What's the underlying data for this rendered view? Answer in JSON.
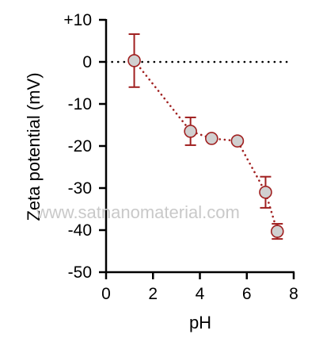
{
  "chart_data": {
    "type": "scatter",
    "xlabel": "pH",
    "ylabel": "Zeta potential (mV)",
    "xlim": [
      0,
      8
    ],
    "ylim": [
      -50,
      10
    ],
    "x_ticks": [
      0,
      2,
      4,
      6,
      8
    ],
    "x_tick_labels": [
      "0",
      "2",
      "4",
      "6",
      "8"
    ],
    "y_ticks": [
      10,
      0,
      -10,
      -20,
      -30,
      -40,
      -50
    ],
    "y_tick_labels": [
      "+10",
      "0",
      "-10",
      "-20",
      "-30",
      "-40",
      "-50"
    ],
    "reference_line": {
      "y": 0,
      "style": "dotted",
      "color": "#000000"
    },
    "series": [
      {
        "points": [
          {
            "x": 1.2,
            "y": 0.3,
            "err": 6.3
          },
          {
            "x": 3.6,
            "y": -16.5,
            "err": 3.3
          },
          {
            "x": 4.5,
            "y": -18.2,
            "err": 0
          },
          {
            "x": 5.6,
            "y": -18.8,
            "err": 0
          },
          {
            "x": 6.8,
            "y": -31,
            "err": 3.7
          },
          {
            "x": 7.3,
            "y": -40.3,
            "err": 1.8
          }
        ],
        "connector": "dotted",
        "line_color": "#a02020",
        "marker_fill": "#d0d0d0",
        "marker_edge": "#a02020"
      }
    ]
  },
  "watermark": "www.satnanomaterial.com"
}
